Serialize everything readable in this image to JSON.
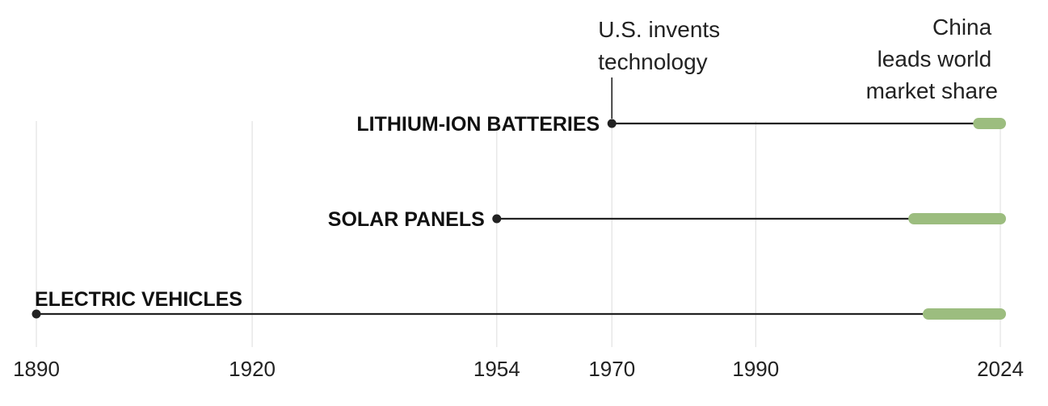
{
  "colors": {
    "line": "#222222",
    "grid": "#e2e2e2",
    "china": "#9cbd7f",
    "text": "#222222"
  },
  "chart_data": {
    "type": "timeline",
    "title": "",
    "xlim": [
      1890,
      2024
    ],
    "ticks": [
      1890,
      1920,
      1954,
      1970,
      1990,
      2024
    ],
    "tick_labels": [
      "1890",
      "1920",
      "1954",
      "1970",
      "1990",
      "2024"
    ],
    "grid": "vertical lines at tick years",
    "series": [
      {
        "name": "LITHIUM-ION BATTERIES",
        "us_invents_year": 1970,
        "china_leads_start": 2021,
        "end_year": 2024
      },
      {
        "name": "SOLAR PANELS",
        "us_invents_year": 1954,
        "china_leads_start": 2012,
        "end_year": 2024
      },
      {
        "name": "ELECTRIC VEHICLES",
        "us_invents_year": 1890,
        "china_leads_start": 2014,
        "end_year": 2024
      }
    ],
    "annotations": {
      "us_invents": [
        "U.S. invents",
        "technology"
      ],
      "china_leads": [
        "China",
        "leads world",
        "market share"
      ]
    }
  }
}
